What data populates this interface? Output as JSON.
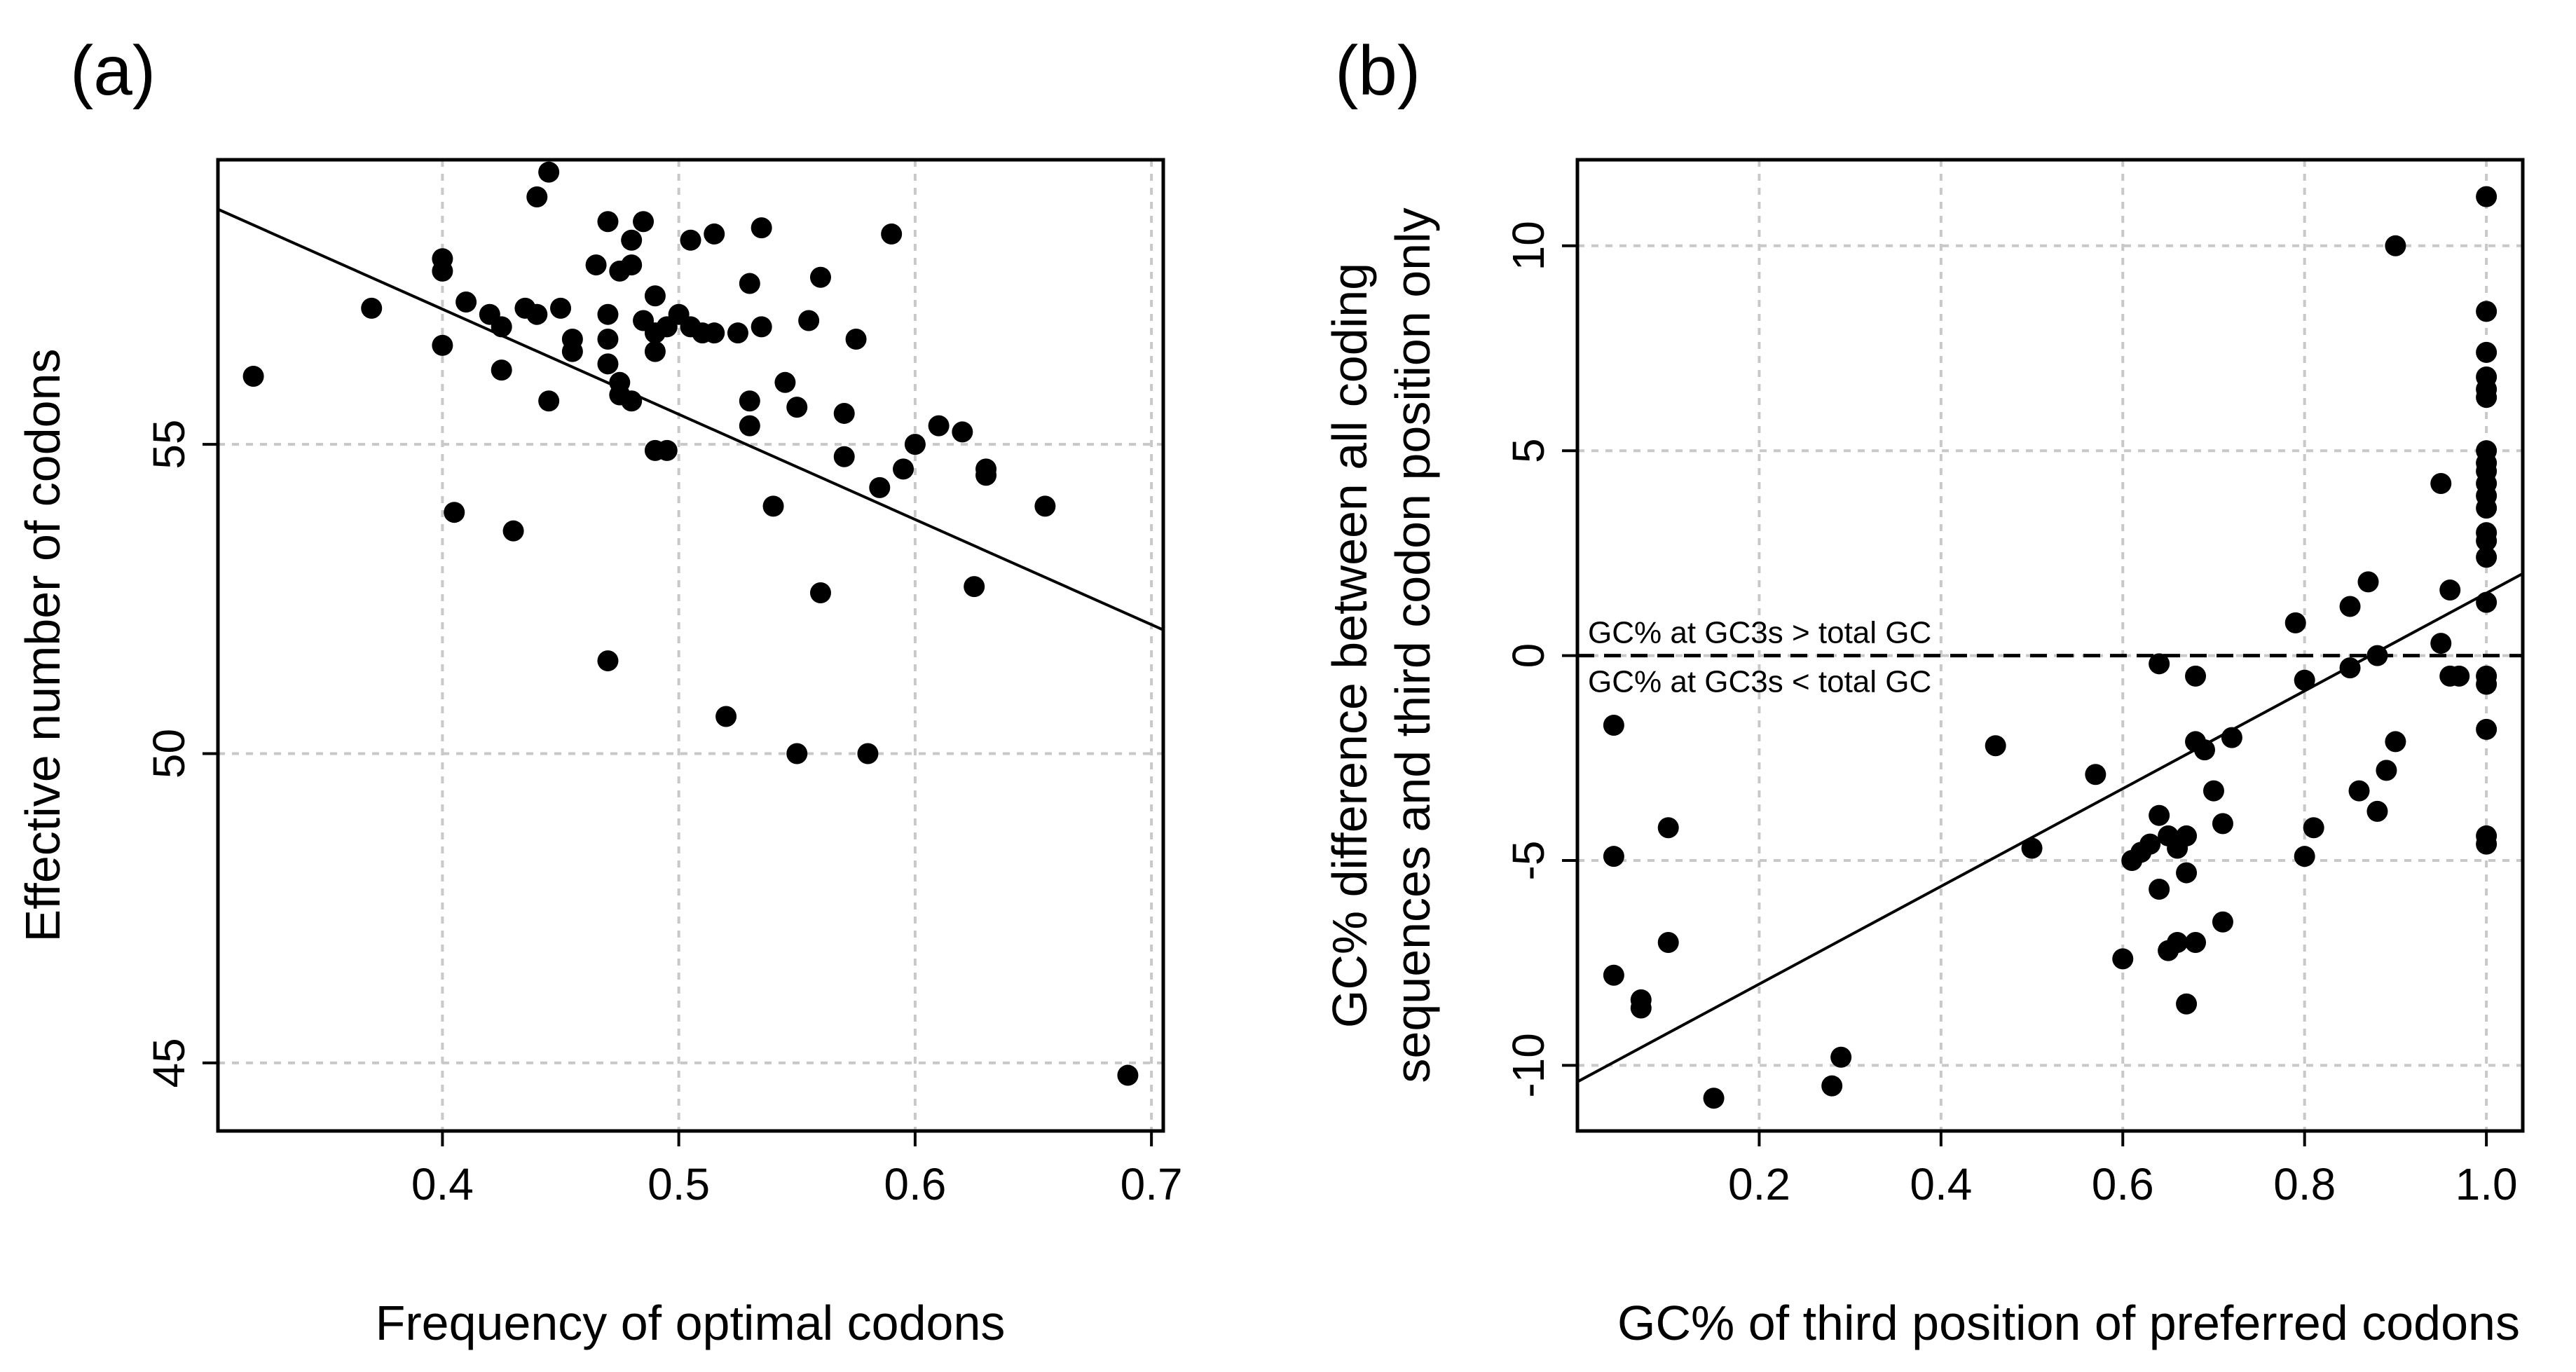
{
  "chart_data": [
    {
      "panel_label": "(a)",
      "type": "scatter",
      "title": "",
      "xlabel": "Frequency of optimal codons",
      "ylabel": "Effective number of codons",
      "xlim": [
        0.305,
        0.705
      ],
      "ylim": [
        43.9,
        59.6
      ],
      "xticks": [
        0.4,
        0.5,
        0.6,
        0.7
      ],
      "xtick_labels": [
        "0.4",
        "0.5",
        "0.6",
        "0.7"
      ],
      "yticks": [
        45,
        50,
        55
      ],
      "ytick_labels": [
        "45",
        "50",
        "55"
      ],
      "grid": true,
      "fit_line": {
        "x": [
          0.305,
          0.705
        ],
        "y": [
          58.8,
          52.0
        ]
      },
      "points": [
        [
          0.32,
          56.1
        ],
        [
          0.37,
          57.2
        ],
        [
          0.4,
          57.8
        ],
        [
          0.4,
          58.0
        ],
        [
          0.4,
          56.6
        ],
        [
          0.41,
          57.3
        ],
        [
          0.405,
          53.9
        ],
        [
          0.42,
          57.1
        ],
        [
          0.425,
          56.9
        ],
        [
          0.425,
          56.2
        ],
        [
          0.43,
          53.6
        ],
        [
          0.435,
          57.2
        ],
        [
          0.44,
          59.0
        ],
        [
          0.44,
          57.1
        ],
        [
          0.445,
          59.4
        ],
        [
          0.445,
          55.7
        ],
        [
          0.45,
          57.2
        ],
        [
          0.455,
          56.5
        ],
        [
          0.455,
          56.7
        ],
        [
          0.465,
          57.9
        ],
        [
          0.47,
          58.6
        ],
        [
          0.47,
          57.1
        ],
        [
          0.47,
          56.7
        ],
        [
          0.47,
          56.3
        ],
        [
          0.475,
          57.8
        ],
        [
          0.475,
          56.0
        ],
        [
          0.475,
          55.8
        ],
        [
          0.47,
          51.5
        ],
        [
          0.48,
          58.3
        ],
        [
          0.48,
          57.9
        ],
        [
          0.48,
          55.7
        ],
        [
          0.485,
          58.6
        ],
        [
          0.485,
          57.0
        ],
        [
          0.49,
          57.4
        ],
        [
          0.49,
          56.5
        ],
        [
          0.49,
          56.8
        ],
        [
          0.49,
          54.9
        ],
        [
          0.495,
          56.9
        ],
        [
          0.495,
          54.9
        ],
        [
          0.5,
          57.1
        ],
        [
          0.505,
          56.9
        ],
        [
          0.505,
          58.3
        ],
        [
          0.51,
          56.8
        ],
        [
          0.515,
          58.4
        ],
        [
          0.515,
          56.8
        ],
        [
          0.52,
          50.6
        ],
        [
          0.525,
          56.8
        ],
        [
          0.53,
          57.6
        ],
        [
          0.53,
          55.7
        ],
        [
          0.53,
          55.3
        ],
        [
          0.535,
          56.9
        ],
        [
          0.535,
          58.5
        ],
        [
          0.54,
          54.0
        ],
        [
          0.545,
          56.0
        ],
        [
          0.55,
          55.6
        ],
        [
          0.55,
          50.0
        ],
        [
          0.555,
          57.0
        ],
        [
          0.56,
          57.7
        ],
        [
          0.56,
          52.6
        ],
        [
          0.57,
          54.8
        ],
        [
          0.57,
          55.5
        ],
        [
          0.575,
          56.7
        ],
        [
          0.58,
          50.0
        ],
        [
          0.585,
          54.3
        ],
        [
          0.59,
          58.4
        ],
        [
          0.595,
          54.6
        ],
        [
          0.6,
          55.0
        ],
        [
          0.61,
          55.3
        ],
        [
          0.62,
          55.2
        ],
        [
          0.625,
          52.7
        ],
        [
          0.63,
          54.6
        ],
        [
          0.63,
          54.5
        ],
        [
          0.655,
          54.0
        ],
        [
          0.69,
          44.8
        ]
      ]
    },
    {
      "panel_label": "(b)",
      "type": "scatter",
      "title": "",
      "xlabel": "GC% of third position of preferred codons",
      "ylabel_lines": [
        "GC% difference between all coding",
        "sequences and third codon position only"
      ],
      "xlim": [
        0.0,
        1.04
      ],
      "ylim": [
        -11.6,
        12.1
      ],
      "xticks": [
        0.2,
        0.4,
        0.6,
        0.8,
        1.0
      ],
      "xtick_labels": [
        "0.2",
        "0.4",
        "0.6",
        "0.8",
        "1.0"
      ],
      "yticks": [
        -10,
        -5,
        0,
        5,
        10
      ],
      "ytick_labels": [
        "-10",
        "-5",
        "0",
        "5",
        "10"
      ],
      "grid": true,
      "fit_line": {
        "x": [
          0.0,
          1.04
        ],
        "y": [
          -10.4,
          2.0
        ]
      },
      "reference_line": {
        "y": 0,
        "style": "dashed"
      },
      "annotations": {
        "above": "GC% at GC3s > total GC",
        "below": "GC% at GC3s < total GC"
      },
      "points": [
        [
          0.04,
          -1.7
        ],
        [
          0.04,
          -4.9
        ],
        [
          0.04,
          -7.8
        ],
        [
          0.07,
          -8.4
        ],
        [
          0.07,
          -8.6
        ],
        [
          0.1,
          -4.2
        ],
        [
          0.1,
          -7.0
        ],
        [
          0.15,
          -10.8
        ],
        [
          0.28,
          -10.5
        ],
        [
          0.29,
          -9.8
        ],
        [
          0.46,
          -2.2
        ],
        [
          0.5,
          -4.7
        ],
        [
          0.57,
          -2.9
        ],
        [
          0.6,
          -7.4
        ],
        [
          0.61,
          -5.0
        ],
        [
          0.62,
          -4.8
        ],
        [
          0.63,
          -4.6
        ],
        [
          0.64,
          -3.9
        ],
        [
          0.64,
          -5.7
        ],
        [
          0.64,
          -0.2
        ],
        [
          0.65,
          -4.4
        ],
        [
          0.65,
          -7.2
        ],
        [
          0.66,
          -4.7
        ],
        [
          0.66,
          -7.0
        ],
        [
          0.67,
          -5.3
        ],
        [
          0.67,
          -8.5
        ],
        [
          0.67,
          -4.4
        ],
        [
          0.68,
          -2.1
        ],
        [
          0.68,
          -7.0
        ],
        [
          0.68,
          -0.5
        ],
        [
          0.69,
          -2.3
        ],
        [
          0.7,
          -3.3
        ],
        [
          0.71,
          -4.1
        ],
        [
          0.71,
          -6.5
        ],
        [
          0.72,
          -2.0
        ],
        [
          0.79,
          0.8
        ],
        [
          0.8,
          -0.6
        ],
        [
          0.8,
          -4.9
        ],
        [
          0.81,
          -4.2
        ],
        [
          0.85,
          1.2
        ],
        [
          0.85,
          -0.3
        ],
        [
          0.86,
          -3.3
        ],
        [
          0.87,
          1.8
        ],
        [
          0.88,
          0.0
        ],
        [
          0.88,
          -3.8
        ],
        [
          0.89,
          -2.8
        ],
        [
          0.9,
          10.0
        ],
        [
          0.9,
          -2.1
        ],
        [
          0.95,
          4.2
        ],
        [
          0.95,
          0.3
        ],
        [
          0.96,
          1.6
        ],
        [
          0.96,
          -0.5
        ],
        [
          0.97,
          -0.5
        ],
        [
          1.0,
          11.2
        ],
        [
          1.0,
          8.4
        ],
        [
          1.0,
          7.4
        ],
        [
          1.0,
          6.8
        ],
        [
          1.0,
          6.5
        ],
        [
          1.0,
          6.3
        ],
        [
          1.0,
          5.0
        ],
        [
          1.0,
          4.7
        ],
        [
          1.0,
          4.5
        ],
        [
          1.0,
          4.2
        ],
        [
          1.0,
          3.9
        ],
        [
          1.0,
          3.6
        ],
        [
          1.0,
          3.0
        ],
        [
          1.0,
          2.8
        ],
        [
          1.0,
          2.4
        ],
        [
          1.0,
          1.3
        ],
        [
          1.0,
          -0.5
        ],
        [
          1.0,
          -0.7
        ],
        [
          1.0,
          -1.8
        ],
        [
          1.0,
          -4.4
        ],
        [
          1.0,
          -4.6
        ]
      ]
    }
  ]
}
